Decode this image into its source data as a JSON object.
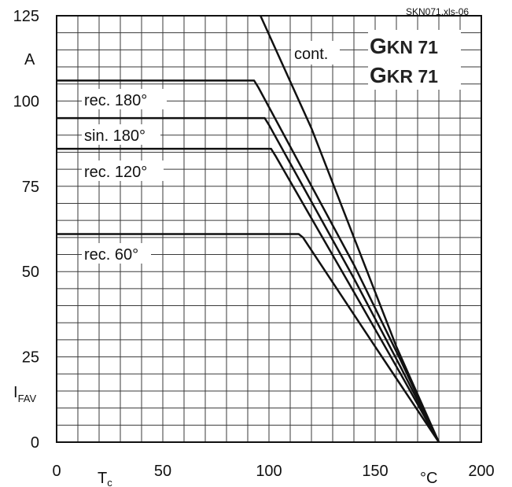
{
  "chart_data": {
    "type": "line",
    "source_tag": "SKN071.xls-06",
    "title_lines": [
      {
        "letter": "G",
        "text": "KN 71"
      },
      {
        "letter": "G",
        "text": "KR 71"
      }
    ],
    "y_unit": "A",
    "y_symbol": "I",
    "y_symbol_sub": "FAV",
    "x_symbol": "T",
    "x_symbol_sub": "c",
    "x_unit": "°C",
    "xlim": [
      0,
      200
    ],
    "ylim": [
      0,
      125
    ],
    "x_ticks": [
      "0",
      "50",
      "100",
      "150",
      "200"
    ],
    "x_tick_values": [
      0,
      50,
      100,
      150,
      200
    ],
    "y_ticks": [
      "0",
      "25",
      "50",
      "75",
      "100",
      "125"
    ],
    "y_tick_values": [
      0,
      25,
      50,
      75,
      100,
      125
    ],
    "grid": true,
    "series": [
      {
        "name": "cont.",
        "points": [
          [
            96,
            125
          ],
          [
            120,
            92
          ],
          [
            140,
            60
          ],
          [
            160,
            28
          ],
          [
            180,
            0
          ]
        ]
      },
      {
        "name": "rec. 180°",
        "points": [
          [
            0,
            106
          ],
          [
            93,
            106
          ],
          [
            95,
            104
          ],
          [
            140,
            52
          ],
          [
            162,
            24
          ],
          [
            180,
            0
          ]
        ]
      },
      {
        "name": "sin. 180°",
        "points": [
          [
            0,
            95
          ],
          [
            98,
            95
          ],
          [
            100,
            93
          ],
          [
            140,
            48
          ],
          [
            162,
            22
          ],
          [
            180,
            0
          ]
        ]
      },
      {
        "name": "rec. 120°",
        "points": [
          [
            0,
            86
          ],
          [
            101,
            86
          ],
          [
            103,
            84
          ],
          [
            140,
            44
          ],
          [
            162,
            20
          ],
          [
            180,
            0
          ]
        ]
      },
      {
        "name": "rec. 60°",
        "points": [
          [
            0,
            61
          ],
          [
            114,
            61
          ],
          [
            116,
            60
          ],
          [
            150,
            28
          ],
          [
            165,
            14
          ],
          [
            180,
            0
          ]
        ]
      }
    ]
  }
}
